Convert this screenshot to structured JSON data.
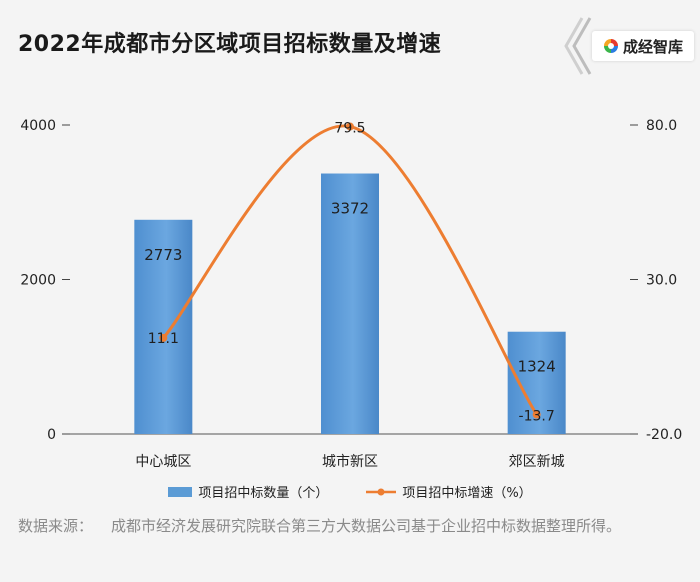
{
  "title": "2022年成都市分区域项目招标数量及增速",
  "brand": {
    "name": "成经智库",
    "colors": [
      "#e63a2e",
      "#f5a623",
      "#2a7de1",
      "#3bb54a"
    ]
  },
  "chart_data": {
    "type": "bar",
    "categories": [
      "中心城区",
      "城市新区",
      "郊区新城"
    ],
    "series": [
      {
        "name": "项目招中标数量（个）",
        "type": "bar",
        "axis": "left",
        "values": [
          2773,
          3372,
          1324
        ],
        "color": "#5b9bd5"
      },
      {
        "name": "项目招中标增速（%）",
        "type": "line",
        "axis": "right",
        "smooth": true,
        "values": [
          11.1,
          79.5,
          -13.7
        ],
        "color": "#ed7d31"
      }
    ],
    "y_left": {
      "min": 0,
      "max": 4000,
      "ticks": [
        "0",
        "2000",
        "4000"
      ]
    },
    "y_right": {
      "min": -20,
      "max": 80,
      "ticks": [
        "-20.0",
        "30.0",
        "80.0"
      ]
    },
    "data_labels": {
      "bar": [
        "2773",
        "3372",
        "1324"
      ],
      "line": [
        "11.1",
        "79.5",
        "-13.7"
      ]
    },
    "legend_position": "bottom"
  },
  "source": {
    "label": "数据来源：",
    "text": "成都市经济发展研究院联合第三方大数据公司基于企业招中标数据整理所得。"
  }
}
